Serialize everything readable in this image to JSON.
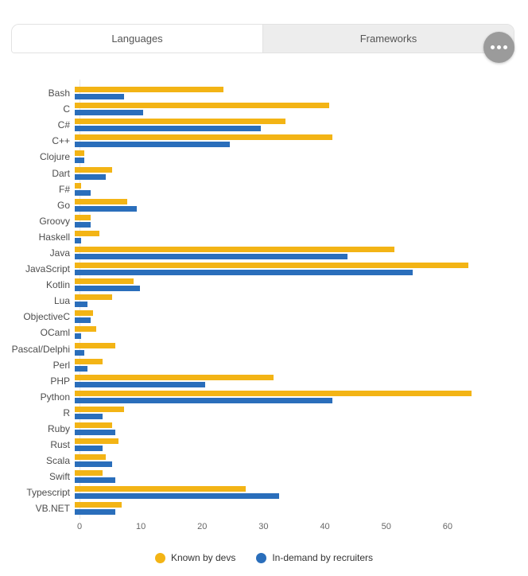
{
  "tabs": [
    {
      "label": "Languages",
      "active": true
    },
    {
      "label": "Frameworks",
      "active": false
    }
  ],
  "menu_button": {
    "icon": "ellipsis"
  },
  "colors": {
    "known_by_devs": "#F3B415",
    "in_demand_by_recruiters": "#2A6EBB",
    "tab_inactive_bg": "#EDEDED",
    "tab_border": "#E2E2E2",
    "menu_circle": "#9B9B9B",
    "axis_line": "#E6E6E6",
    "label_text": "#4D4D4D",
    "tick_text": "#666666"
  },
  "chart_data": {
    "type": "bar",
    "orientation": "horizontal",
    "title": "",
    "xlabel": "",
    "ylabel": "",
    "grid": false,
    "legend_position": "bottom",
    "xlim": [
      0,
      70
    ],
    "xticks": [
      0,
      10,
      20,
      30,
      40,
      50,
      60
    ],
    "categories": [
      "Bash",
      "C",
      "C#",
      "C++",
      "Clojure",
      "Dart",
      "F#",
      "Go",
      "Groovy",
      "Haskell",
      "Java",
      "JavaScript",
      "Kotlin",
      "Lua",
      "ObjectiveC",
      "OCaml",
      "Pascal/Delphi",
      "Perl",
      "PHP",
      "Python",
      "R",
      "Ruby",
      "Rust",
      "Scala",
      "Swift",
      "Typescript",
      "VB.NET"
    ],
    "series": [
      {
        "name": "Known by devs",
        "color": "#F3B415",
        "values": [
          24,
          41,
          34,
          41.5,
          1.5,
          6,
          1,
          8.5,
          2.5,
          4,
          51.5,
          63.5,
          9.5,
          6,
          3,
          3.5,
          6.5,
          4.5,
          32,
          64,
          8,
          6,
          7,
          5,
          4.5,
          27.5,
          7.5
        ]
      },
      {
        "name": "In-demand by recruiters",
        "color": "#2A6EBB",
        "values": [
          8,
          11,
          30,
          25,
          1.5,
          5,
          2.5,
          10,
          2.5,
          1,
          44,
          54.5,
          10.5,
          2,
          2.5,
          1,
          1.5,
          2,
          21,
          41.5,
          4.5,
          6.5,
          4.5,
          6,
          6.5,
          33,
          6.5
        ]
      }
    ]
  }
}
